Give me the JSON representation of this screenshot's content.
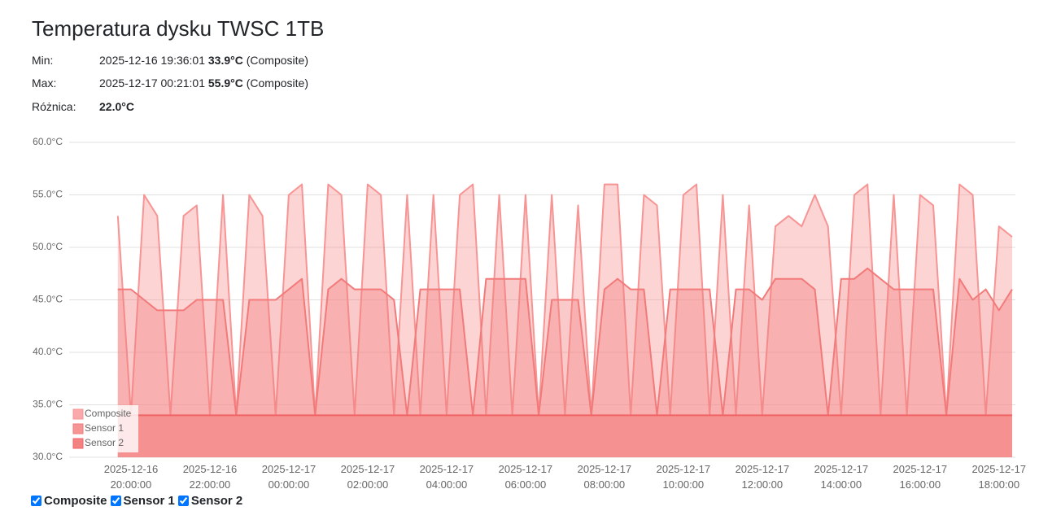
{
  "header": {
    "title": "Temperatura dysku TWSC 1TB"
  },
  "stats": {
    "min": {
      "label": "Min:",
      "time": "2025-12-16 19:36:01",
      "value": "33.9°C",
      "source": "(Composite)"
    },
    "max": {
      "label": "Max:",
      "time": "2025-12-17 00:21:01",
      "value": "55.9°C",
      "source": "(Composite)"
    },
    "diff": {
      "label": "Różnica:",
      "value": "22.0°C"
    }
  },
  "chart_data": {
    "type": "area",
    "x": [
      "2025-12-16 19:40:00",
      "2025-12-16 20:00:00",
      "2025-12-16 20:20:00",
      "2025-12-16 20:40:00",
      "2025-12-16 21:00:00",
      "2025-12-16 21:20:00",
      "2025-12-16 21:40:00",
      "2025-12-16 22:00:00",
      "2025-12-16 22:20:00",
      "2025-12-16 22:40:00",
      "2025-12-16 23:00:00",
      "2025-12-16 23:20:00",
      "2025-12-16 23:40:00",
      "2025-12-17 00:00:00",
      "2025-12-17 00:20:00",
      "2025-12-17 00:40:00",
      "2025-12-17 01:00:00",
      "2025-12-17 01:20:00",
      "2025-12-17 01:40:00",
      "2025-12-17 02:00:00",
      "2025-12-17 02:20:00",
      "2025-12-17 02:40:00",
      "2025-12-17 03:00:00",
      "2025-12-17 03:20:00",
      "2025-12-17 03:40:00",
      "2025-12-17 04:00:00",
      "2025-12-17 04:20:00",
      "2025-12-17 04:40:00",
      "2025-12-17 05:00:00",
      "2025-12-17 05:20:00",
      "2025-12-17 05:40:00",
      "2025-12-17 06:00:00",
      "2025-12-17 06:20:00",
      "2025-12-17 06:40:00",
      "2025-12-17 07:00:00",
      "2025-12-17 07:20:00",
      "2025-12-17 07:40:00",
      "2025-12-17 08:00:00",
      "2025-12-17 08:20:00",
      "2025-12-17 08:40:00",
      "2025-12-17 09:00:00",
      "2025-12-17 09:20:00",
      "2025-12-17 09:40:00",
      "2025-12-17 10:00:00",
      "2025-12-17 10:20:00",
      "2025-12-17 10:40:00",
      "2025-12-17 11:00:00",
      "2025-12-17 11:20:00",
      "2025-12-17 11:40:00",
      "2025-12-17 12:00:00",
      "2025-12-17 12:20:00",
      "2025-12-17 12:40:00",
      "2025-12-17 13:00:00",
      "2025-12-17 13:20:00",
      "2025-12-17 13:40:00",
      "2025-12-17 14:00:00",
      "2025-12-17 14:20:00",
      "2025-12-17 14:40:00",
      "2025-12-17 15:00:00",
      "2025-12-17 15:20:00",
      "2025-12-17 15:40:00",
      "2025-12-17 16:00:00",
      "2025-12-17 16:20:00",
      "2025-12-17 16:40:00",
      "2025-12-17 17:00:00",
      "2025-12-17 17:20:00",
      "2025-12-17 17:40:00",
      "2025-12-17 18:00:00",
      "2025-12-17 18:20:00"
    ],
    "series": [
      {
        "name": "Composite",
        "color": "#f79494",
        "values": [
          53,
          34,
          55,
          53,
          34,
          53,
          54,
          34,
          55,
          34,
          55,
          53,
          34,
          55,
          56,
          34,
          56,
          55,
          34,
          56,
          55,
          34,
          55,
          34,
          55,
          34,
          55,
          56,
          34,
          55,
          34,
          55,
          34,
          55,
          34,
          54,
          34,
          56,
          56,
          34,
          55,
          54,
          34,
          55,
          56,
          34,
          55,
          34,
          54,
          34,
          52,
          53,
          52,
          55,
          52,
          34,
          55,
          56,
          34,
          55,
          34,
          55,
          54,
          34,
          56,
          55,
          34,
          52,
          51
        ]
      },
      {
        "name": "Sensor 1",
        "color": "#f27a7a",
        "values": [
          46,
          46,
          45,
          44,
          44,
          44,
          45,
          45,
          45,
          34,
          45,
          45,
          45,
          46,
          47,
          34,
          46,
          47,
          46,
          46,
          46,
          45,
          34,
          46,
          46,
          46,
          46,
          34,
          47,
          47,
          47,
          47,
          34,
          45,
          45,
          45,
          34,
          46,
          47,
          46,
          46,
          34,
          46,
          46,
          46,
          46,
          34,
          46,
          46,
          45,
          47,
          47,
          47,
          46,
          34,
          47,
          47,
          48,
          47,
          46,
          46,
          46,
          46,
          34,
          47,
          45,
          46,
          44,
          46
        ]
      },
      {
        "name": "Sensor 2",
        "color": "#f06464",
        "values": [
          34,
          34,
          34,
          34,
          34,
          34,
          34,
          34,
          34,
          34,
          34,
          34,
          34,
          34,
          34,
          34,
          34,
          34,
          34,
          34,
          34,
          34,
          34,
          34,
          34,
          34,
          34,
          34,
          34,
          34,
          34,
          34,
          34,
          34,
          34,
          34,
          34,
          34,
          34,
          34,
          34,
          34,
          34,
          34,
          34,
          34,
          34,
          34,
          34,
          34,
          34,
          34,
          34,
          34,
          34,
          34,
          34,
          34,
          34,
          34,
          34,
          34,
          34,
          34,
          34,
          34,
          34,
          34,
          34
        ]
      }
    ],
    "xlim": [
      "2025-12-16 18:26:00",
      "2025-12-17 18:25:00"
    ],
    "xticks": [
      "2025-12-16 20:00:00",
      "2025-12-16 22:00:00",
      "2025-12-17 00:00:00",
      "2025-12-17 02:00:00",
      "2025-12-17 04:00:00",
      "2025-12-17 06:00:00",
      "2025-12-17 08:00:00",
      "2025-12-17 10:00:00",
      "2025-12-17 12:00:00",
      "2025-12-17 14:00:00",
      "2025-12-17 16:00:00",
      "2025-12-17 18:00:00"
    ],
    "ylim": [
      30,
      60
    ],
    "yticks": [
      {
        "value": 30,
        "label": "30.0°C"
      },
      {
        "value": 35,
        "label": "35.0°C"
      },
      {
        "value": 40,
        "label": "40.0°C"
      },
      {
        "value": 45,
        "label": "45.0°C"
      },
      {
        "value": 50,
        "label": "50.0°C"
      },
      {
        "value": 55,
        "label": "55.0°C"
      },
      {
        "value": 60,
        "label": "60.0°C"
      }
    ],
    "grid": true,
    "legend": "bottom-left"
  }
}
